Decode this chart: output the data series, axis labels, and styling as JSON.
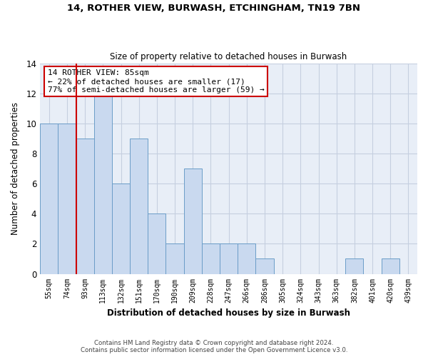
{
  "title1": "14, ROTHER VIEW, BURWASH, ETCHINGHAM, TN19 7BN",
  "title2": "Size of property relative to detached houses in Burwash",
  "xlabel": "Distribution of detached houses by size in Burwash",
  "ylabel": "Number of detached properties",
  "categories": [
    "55sqm",
    "74sqm",
    "93sqm",
    "113sqm",
    "132sqm",
    "151sqm",
    "170sqm",
    "190sqm",
    "209sqm",
    "228sqm",
    "247sqm",
    "266sqm",
    "286sqm",
    "305sqm",
    "324sqm",
    "343sqm",
    "363sqm",
    "382sqm",
    "401sqm",
    "420sqm",
    "439sqm"
  ],
  "values": [
    10,
    10,
    9,
    12,
    6,
    9,
    4,
    2,
    7,
    2,
    2,
    2,
    1,
    0,
    0,
    0,
    0,
    1,
    0,
    1,
    0
  ],
  "bar_color": "#c9d9ef",
  "bar_edge_color": "#6b9dc8",
  "vline_x": 1.5,
  "vline_color": "#cc0000",
  "annotation_title": "14 ROTHER VIEW: 85sqm",
  "annotation_line2": "← 22% of detached houses are smaller (17)",
  "annotation_line3": "77% of semi-detached houses are larger (59) →",
  "annotation_box_color": "#cc0000",
  "ylim": [
    0,
    14
  ],
  "yticks": [
    0,
    2,
    4,
    6,
    8,
    10,
    12,
    14
  ],
  "footnote1": "Contains HM Land Registry data © Crown copyright and database right 2024.",
  "footnote2": "Contains public sector information licensed under the Open Government Licence v3.0.",
  "background_color": "#ffffff",
  "plot_bg_color": "#e8eef7",
  "grid_color": "#c5cfe0"
}
